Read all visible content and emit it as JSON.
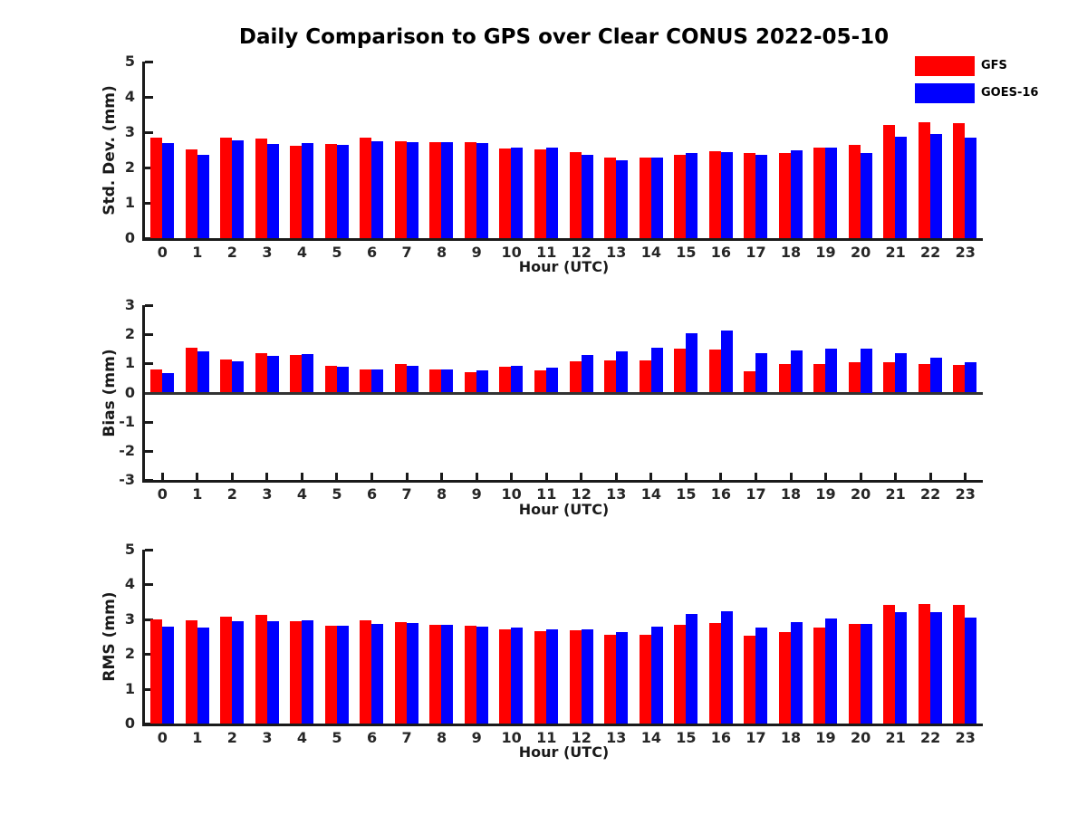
{
  "title": "Daily Comparison to GPS over Clear CONUS 2022-05-10",
  "colors": {
    "gfs": "#ff0000",
    "goes16": "#0000ff",
    "axis": "#1a1a1a",
    "tick_text": "#262626"
  },
  "legend": {
    "position": "top-right",
    "items": [
      {
        "label": "GFS",
        "color": "#ff0000"
      },
      {
        "label": "GOES-16",
        "color": "#0000ff"
      }
    ]
  },
  "chart_data": [
    {
      "type": "bar",
      "title": "Daily Comparison to GPS over Clear CONUS 2022-05-10",
      "ylabel": "Std. Dev. (mm)",
      "xlabel": "Hour (UTC)",
      "ylim": [
        0,
        5
      ],
      "yticks": [
        0,
        1,
        2,
        3,
        4,
        5
      ],
      "grid": false,
      "categories": [
        0,
        1,
        2,
        3,
        4,
        5,
        6,
        7,
        8,
        9,
        10,
        11,
        12,
        13,
        14,
        15,
        16,
        17,
        18,
        19,
        20,
        21,
        22,
        23
      ],
      "series": [
        {
          "name": "GFS",
          "color": "#ff0000",
          "values": [
            2.85,
            2.52,
            2.85,
            2.81,
            2.62,
            2.66,
            2.85,
            2.74,
            2.72,
            2.72,
            2.53,
            2.51,
            2.44,
            2.28,
            2.28,
            2.36,
            2.46,
            2.4,
            2.42,
            2.56,
            2.63,
            3.2,
            3.27,
            3.25
          ]
        },
        {
          "name": "GOES-16",
          "color": "#0000ff",
          "values": [
            2.69,
            2.35,
            2.78,
            2.67,
            2.68,
            2.63,
            2.75,
            2.72,
            2.72,
            2.68,
            2.56,
            2.56,
            2.36,
            2.2,
            2.29,
            2.4,
            2.43,
            2.36,
            2.49,
            2.56,
            2.41,
            2.87,
            2.94,
            2.85
          ]
        }
      ]
    },
    {
      "type": "bar",
      "title": "",
      "ylabel": "Bias (mm)",
      "xlabel": "Hour (UTC)",
      "ylim": [
        -3,
        3
      ],
      "yticks": [
        -3,
        -2,
        -1,
        0,
        1,
        2,
        3
      ],
      "grid": false,
      "zero_baseline": true,
      "categories": [
        0,
        1,
        2,
        3,
        4,
        5,
        6,
        7,
        8,
        9,
        10,
        11,
        12,
        13,
        14,
        15,
        16,
        17,
        18,
        19,
        20,
        21,
        22,
        23
      ],
      "series": [
        {
          "name": "GFS",
          "color": "#ff0000",
          "values": [
            0.78,
            1.55,
            1.15,
            1.35,
            1.3,
            0.92,
            0.8,
            0.97,
            0.8,
            0.71,
            0.9,
            0.76,
            1.06,
            1.1,
            1.11,
            1.52,
            1.47,
            0.72,
            0.98,
            0.98,
            1.04,
            1.03,
            0.98,
            0.95
          ]
        },
        {
          "name": "GOES-16",
          "color": "#0000ff",
          "values": [
            0.68,
            1.4,
            1.06,
            1.25,
            1.33,
            0.88,
            0.8,
            0.93,
            0.8,
            0.76,
            0.92,
            0.85,
            1.28,
            1.4,
            1.54,
            2.05,
            2.12,
            1.36,
            1.45,
            1.52,
            1.5,
            1.36,
            1.21,
            1.03
          ]
        }
      ]
    },
    {
      "type": "bar",
      "title": "",
      "ylabel": "RMS (mm)",
      "xlabel": "Hour (UTC)",
      "ylim": [
        0,
        5
      ],
      "yticks": [
        0,
        1,
        2,
        3,
        4,
        5
      ],
      "grid": false,
      "categories": [
        0,
        1,
        2,
        3,
        4,
        5,
        6,
        7,
        8,
        9,
        10,
        11,
        12,
        13,
        14,
        15,
        16,
        17,
        18,
        19,
        20,
        21,
        22,
        23
      ],
      "series": [
        {
          "name": "GFS",
          "color": "#ff0000",
          "values": [
            3.0,
            2.96,
            3.07,
            3.12,
            2.94,
            2.82,
            2.96,
            2.92,
            2.85,
            2.82,
            2.72,
            2.65,
            2.68,
            2.56,
            2.56,
            2.84,
            2.9,
            2.53,
            2.63,
            2.77,
            2.87,
            3.4,
            3.45,
            3.4
          ]
        },
        {
          "name": "GOES-16",
          "color": "#0000ff",
          "values": [
            2.78,
            2.75,
            2.95,
            2.93,
            2.98,
            2.8,
            2.87,
            2.88,
            2.84,
            2.79,
            2.75,
            2.7,
            2.7,
            2.63,
            2.78,
            3.16,
            3.24,
            2.77,
            2.91,
            3.02,
            2.86,
            3.2,
            3.2,
            3.04
          ]
        }
      ]
    }
  ]
}
